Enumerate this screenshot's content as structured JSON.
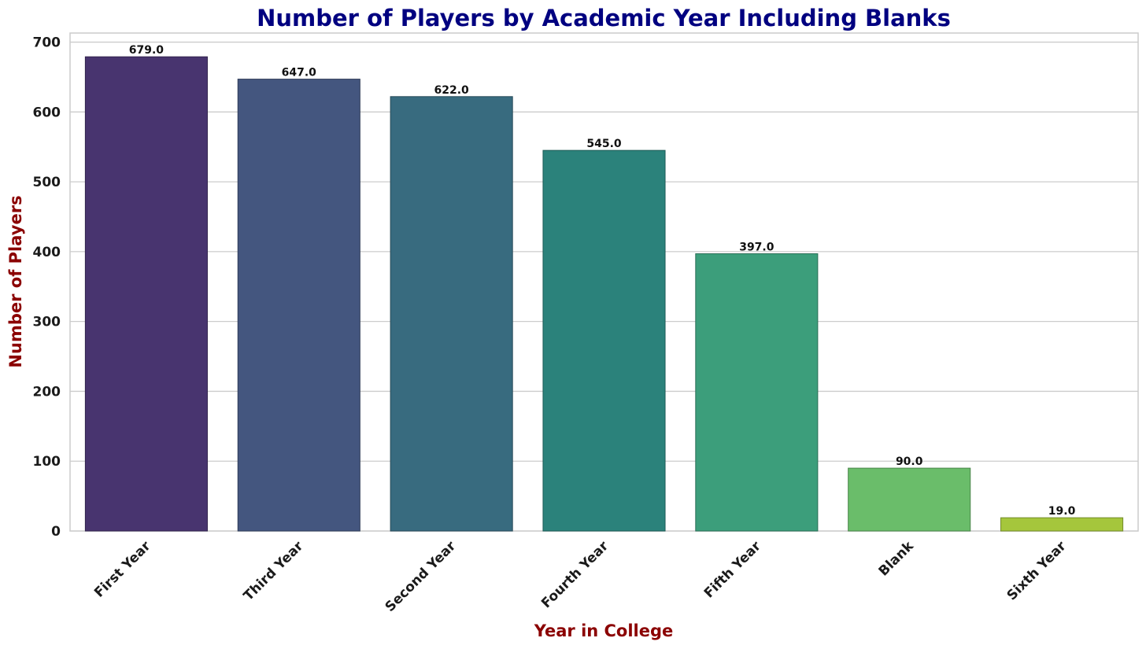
{
  "chart_data": {
    "type": "bar",
    "title": "Number of Players by Academic Year Including Blanks",
    "xlabel": "Year in College",
    "ylabel": "Number of Players",
    "categories": [
      "First Year",
      "Third Year",
      "Second Year",
      "Fourth Year",
      "Fifth Year",
      "Blank",
      "Sixth Year"
    ],
    "values": [
      679,
      647,
      622,
      545,
      397,
      90,
      19
    ],
    "value_labels": [
      "679.0",
      "647.0",
      "622.0",
      "545.0",
      "397.0",
      "90.0",
      "19.0"
    ],
    "y_ticks": [
      0,
      100,
      200,
      300,
      400,
      500,
      600,
      700
    ],
    "ylim": [
      0,
      713
    ],
    "grid": true,
    "grid_axis": "y",
    "x_tick_rotation_deg": -45,
    "colors": {
      "title": "#000080",
      "axis_label": "#8b0000",
      "grid": "#cccccc",
      "spine": "#cccccc",
      "bars": [
        "#48346f",
        "#44567f",
        "#386b7f",
        "#2b827b",
        "#3c9e7b",
        "#6abd6a",
        "#a5c63c"
      ],
      "bar_edges": [
        "#32244d",
        "#2f3c58",
        "#274a58",
        "#1e5b56",
        "#2a6e56",
        "#4a844a",
        "#738a2a"
      ]
    }
  }
}
